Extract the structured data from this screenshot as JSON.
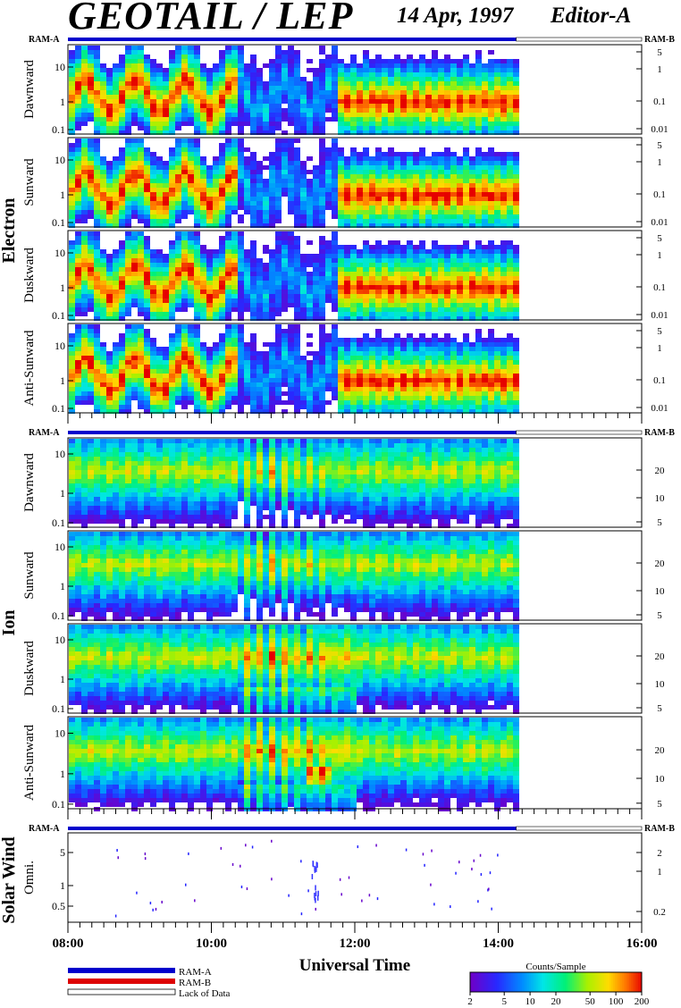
{
  "header": {
    "title": "GEOTAIL / LEP",
    "date": "14 Apr, 1997",
    "editor": "Editor-A"
  },
  "groups": {
    "electron": {
      "label": "Electron",
      "ram_left": "RAM-A",
      "ram_right": "RAM-B"
    },
    "ion": {
      "label": "Ion",
      "ram_left": "RAM-A",
      "ram_right": "RAM-B"
    },
    "solar_wind": {
      "label": "Solar Wind",
      "ram_left": "RAM-A",
      "ram_right": "RAM-B"
    }
  },
  "legend": {
    "ram_a": "RAM-A",
    "ram_b": "RAM-B",
    "lack": "Lack of Data"
  },
  "colorbar": {
    "title": "Counts/Sample",
    "ticks": [
      "2",
      "5",
      "10",
      "20",
      "50",
      "100",
      "200"
    ]
  },
  "xaxis": {
    "label": "Universal Time",
    "ticks": [
      "08:00",
      "10:00",
      "12:00",
      "14:00",
      "16:00"
    ]
  },
  "chart_data": {
    "type": "heatmap",
    "x_range_hours": [
      8,
      16
    ],
    "data_end_hour": 14.25,
    "colors": {
      "ram_a": "#0000cc",
      "ram_b": "#dd0000"
    },
    "panels": [
      {
        "group": "electron",
        "label": "Dawnward",
        "left_ticks": [
          "10",
          "1",
          "0.1"
        ],
        "right_ticks": [
          "5",
          "1",
          "0.1",
          "0.01"
        ]
      },
      {
        "group": "electron",
        "label": "Sunward",
        "left_ticks": [
          "10",
          "1",
          "0.1"
        ],
        "right_ticks": [
          "5",
          "1",
          "0.1",
          "0.01"
        ]
      },
      {
        "group": "electron",
        "label": "Duskward",
        "left_ticks": [
          "10",
          "1",
          "0.1"
        ],
        "right_ticks": [
          "5",
          "1",
          "0.1",
          "0.01"
        ]
      },
      {
        "group": "electron",
        "label": "Anti-Sunward",
        "left_ticks": [
          "10",
          "1",
          "0.1"
        ],
        "right_ticks": [
          "5",
          "1",
          "0.1",
          "0.01"
        ]
      },
      {
        "group": "ion",
        "label": "Dawnward",
        "left_ticks": [
          "10",
          "1",
          "0.1"
        ],
        "right_ticks": [
          "20",
          "10",
          "5"
        ]
      },
      {
        "group": "ion",
        "label": "Sunward",
        "left_ticks": [
          "10",
          "1",
          "0.1"
        ],
        "right_ticks": [
          "20",
          "10",
          "5"
        ]
      },
      {
        "group": "ion",
        "label": "Duskward",
        "left_ticks": [
          "10",
          "1",
          "0.1"
        ],
        "right_ticks": [
          "20",
          "10",
          "5"
        ]
      },
      {
        "group": "ion",
        "label": "Anti-Sunward",
        "left_ticks": [
          "10",
          "1",
          "0.1"
        ],
        "right_ticks": [
          "20",
          "10",
          "5"
        ]
      },
      {
        "group": "solar_wind",
        "label": "Omni.",
        "left_ticks": [
          "5",
          "1",
          "0.5"
        ],
        "right_ticks": [
          "2",
          "1",
          "0.2"
        ]
      }
    ]
  }
}
